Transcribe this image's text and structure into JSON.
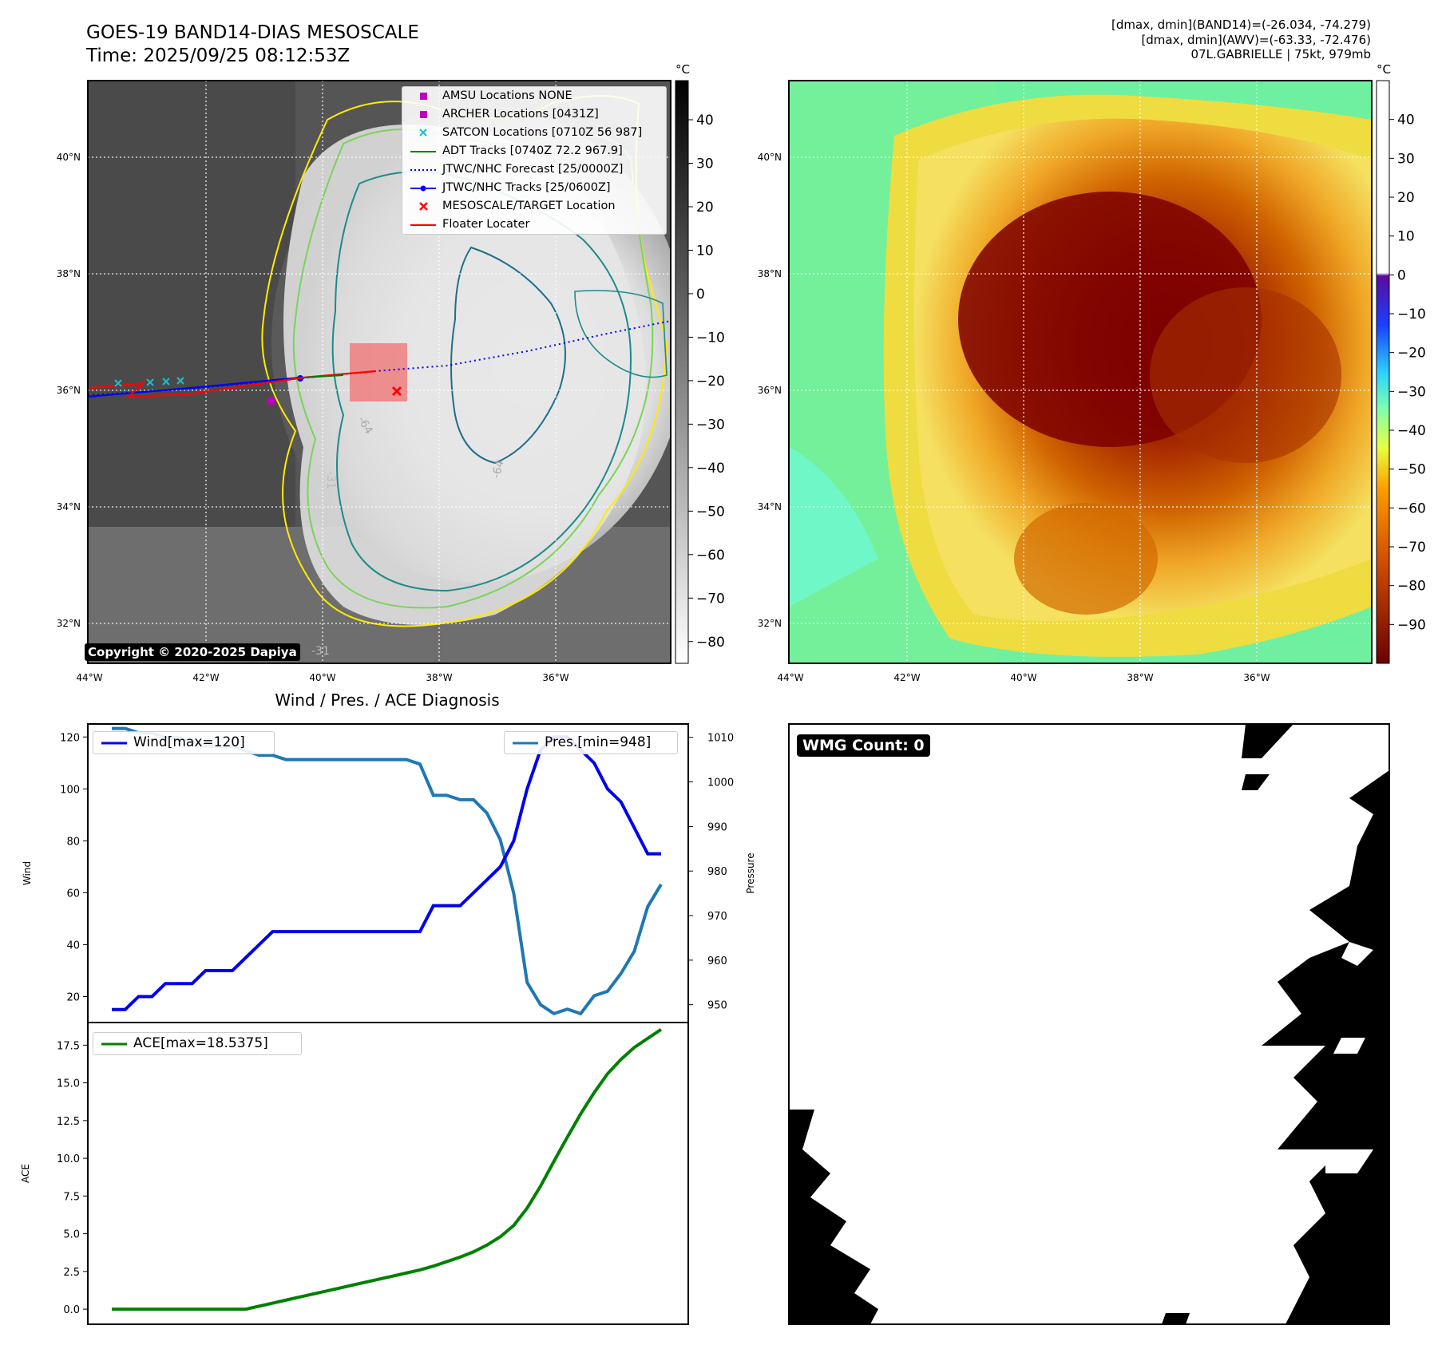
{
  "header": {
    "title_line1": "GOES-19 BAND14-DIAS MESOSCALE",
    "title_line2": "Time: 2025/09/25 08:12:53Z",
    "stats_line1": "[dmax, dmin](BAND14)=(-26.034, -74.279)",
    "stats_line2": "[dmax, dmin](AWV)=(-63.33, -72.476)",
    "stats_line3": "07L.GABRIELLE | 75kt, 979mb"
  },
  "map_axes": {
    "lat_labels": [
      "40°N",
      "38°N",
      "36°N",
      "34°N",
      "32°N"
    ],
    "lon_labels": [
      "44°W",
      "42°W",
      "40°W",
      "38°W",
      "36°W"
    ],
    "contour_labels": [
      "-64",
      "-31",
      "-64",
      "-31"
    ]
  },
  "ir_panel": {
    "unit": "°C",
    "colorbar_ticks": [
      "40",
      "30",
      "20",
      "10",
      "0",
      "−10",
      "−20",
      "−30",
      "−40",
      "−50",
      "−60",
      "−70",
      "−80"
    ],
    "copyright": "Copyright © 2020-2025 Dapiya",
    "legend": [
      {
        "label": "AMSU Locations NONE",
        "color": "#bf00bf",
        "symbol": "square"
      },
      {
        "label": "ARCHER Locations [0431Z]",
        "color": "#bf00bf",
        "symbol": "square"
      },
      {
        "label": "SATCON Locations [0710Z 56 987]",
        "color": "#17becf",
        "symbol": "x"
      },
      {
        "label": "ADT Tracks [0740Z 72.2 967.9]",
        "color": "#008000",
        "symbol": "line"
      },
      {
        "label": "JTWC/NHC Forecast [25/0000Z]",
        "color": "#0000ff",
        "symbol": "dotted"
      },
      {
        "label": "JTWC/NHC Tracks [25/0600Z]",
        "color": "#0000ff",
        "symbol": "line-dot"
      },
      {
        "label": "MESOSCALE/TARGET Location",
        "color": "#ff0000",
        "symbol": "bigx"
      },
      {
        "label": "Floater Locater",
        "color": "#ff0000",
        "symbol": "line"
      }
    ]
  },
  "wv_panel": {
    "unit": "°C",
    "colorbar_ticks": [
      "40",
      "30",
      "20",
      "10",
      "0",
      "−10",
      "−20",
      "−30",
      "−40",
      "−50",
      "−60",
      "−70",
      "−80",
      "−90"
    ]
  },
  "wmg_panel": {
    "label": "WMG Count: 0"
  },
  "chart_data": [
    {
      "type": "line",
      "title": "Wind / Pres. / ACE Diagnosis",
      "x": [
        0,
        1,
        2,
        3,
        4,
        5,
        6,
        7,
        8,
        9,
        10,
        11,
        12,
        13,
        14,
        15,
        16,
        17,
        18,
        19,
        20,
        21,
        22,
        23,
        24,
        25,
        26,
        27,
        28,
        29,
        30,
        31,
        32,
        33,
        34,
        35,
        36,
        37,
        38,
        39,
        40,
        41
      ],
      "series": [
        {
          "name": "Wind[max=120]",
          "axis": "left",
          "color": "#0000ee",
          "values": [
            15,
            15,
            20,
            20,
            25,
            25,
            25,
            30,
            30,
            30,
            35,
            40,
            45,
            45,
            45,
            45,
            45,
            45,
            45,
            45,
            45,
            45,
            45,
            45,
            55,
            55,
            55,
            60,
            65,
            70,
            80,
            100,
            115,
            120,
            120,
            115,
            110,
            100,
            95,
            85,
            75,
            75
          ]
        },
        {
          "name": "Pres.[min=948]",
          "axis": "right",
          "color": "#1f77b4",
          "values": [
            1012,
            1012,
            1011,
            1011,
            1010,
            1010,
            1009,
            1008,
            1008,
            1008,
            1007,
            1006,
            1006,
            1005,
            1005,
            1005,
            1005,
            1005,
            1005,
            1005,
            1005,
            1005,
            1005,
            1004,
            997,
            997,
            996,
            996,
            993,
            987,
            975,
            955,
            950,
            948,
            949,
            948,
            952,
            953,
            957,
            962,
            972,
            977
          ]
        }
      ],
      "ylabel": "Wind",
      "y2label": "Pressure",
      "yticks": [
        "20",
        "40",
        "60",
        "80",
        "100",
        "120"
      ],
      "y2ticks": [
        "950",
        "960",
        "970",
        "980",
        "990",
        "1000",
        "1010"
      ],
      "ylim": [
        10,
        125
      ],
      "y2lim": [
        946,
        1013
      ]
    },
    {
      "type": "line",
      "x": [
        0,
        1,
        2,
        3,
        4,
        5,
        6,
        7,
        8,
        9,
        10,
        11,
        12,
        13,
        14,
        15,
        16,
        17,
        18,
        19,
        20,
        21,
        22,
        23,
        24,
        25,
        26,
        27,
        28,
        29,
        30,
        31,
        32,
        33,
        34,
        35,
        36,
        37,
        38,
        39,
        40,
        41
      ],
      "series": [
        {
          "name": "ACE[max=18.5375]",
          "color": "#008000",
          "values": [
            0,
            0,
            0,
            0,
            0,
            0,
            0,
            0,
            0,
            0,
            0,
            0.2,
            0.4,
            0.6,
            0.8,
            1.0,
            1.2,
            1.4,
            1.6,
            1.8,
            2.0,
            2.2,
            2.4,
            2.6,
            2.85,
            3.15,
            3.45,
            3.8,
            4.25,
            4.8,
            5.55,
            6.7,
            8.15,
            9.8,
            11.4,
            12.95,
            14.35,
            15.6,
            16.55,
            17.35,
            17.95,
            18.54
          ]
        }
      ],
      "ylabel": "ACE",
      "yticks": [
        "0.0",
        "2.5",
        "5.0",
        "7.5",
        "10.0",
        "12.5",
        "15.0",
        "17.5"
      ],
      "ylim": [
        -1,
        19.0
      ]
    }
  ]
}
